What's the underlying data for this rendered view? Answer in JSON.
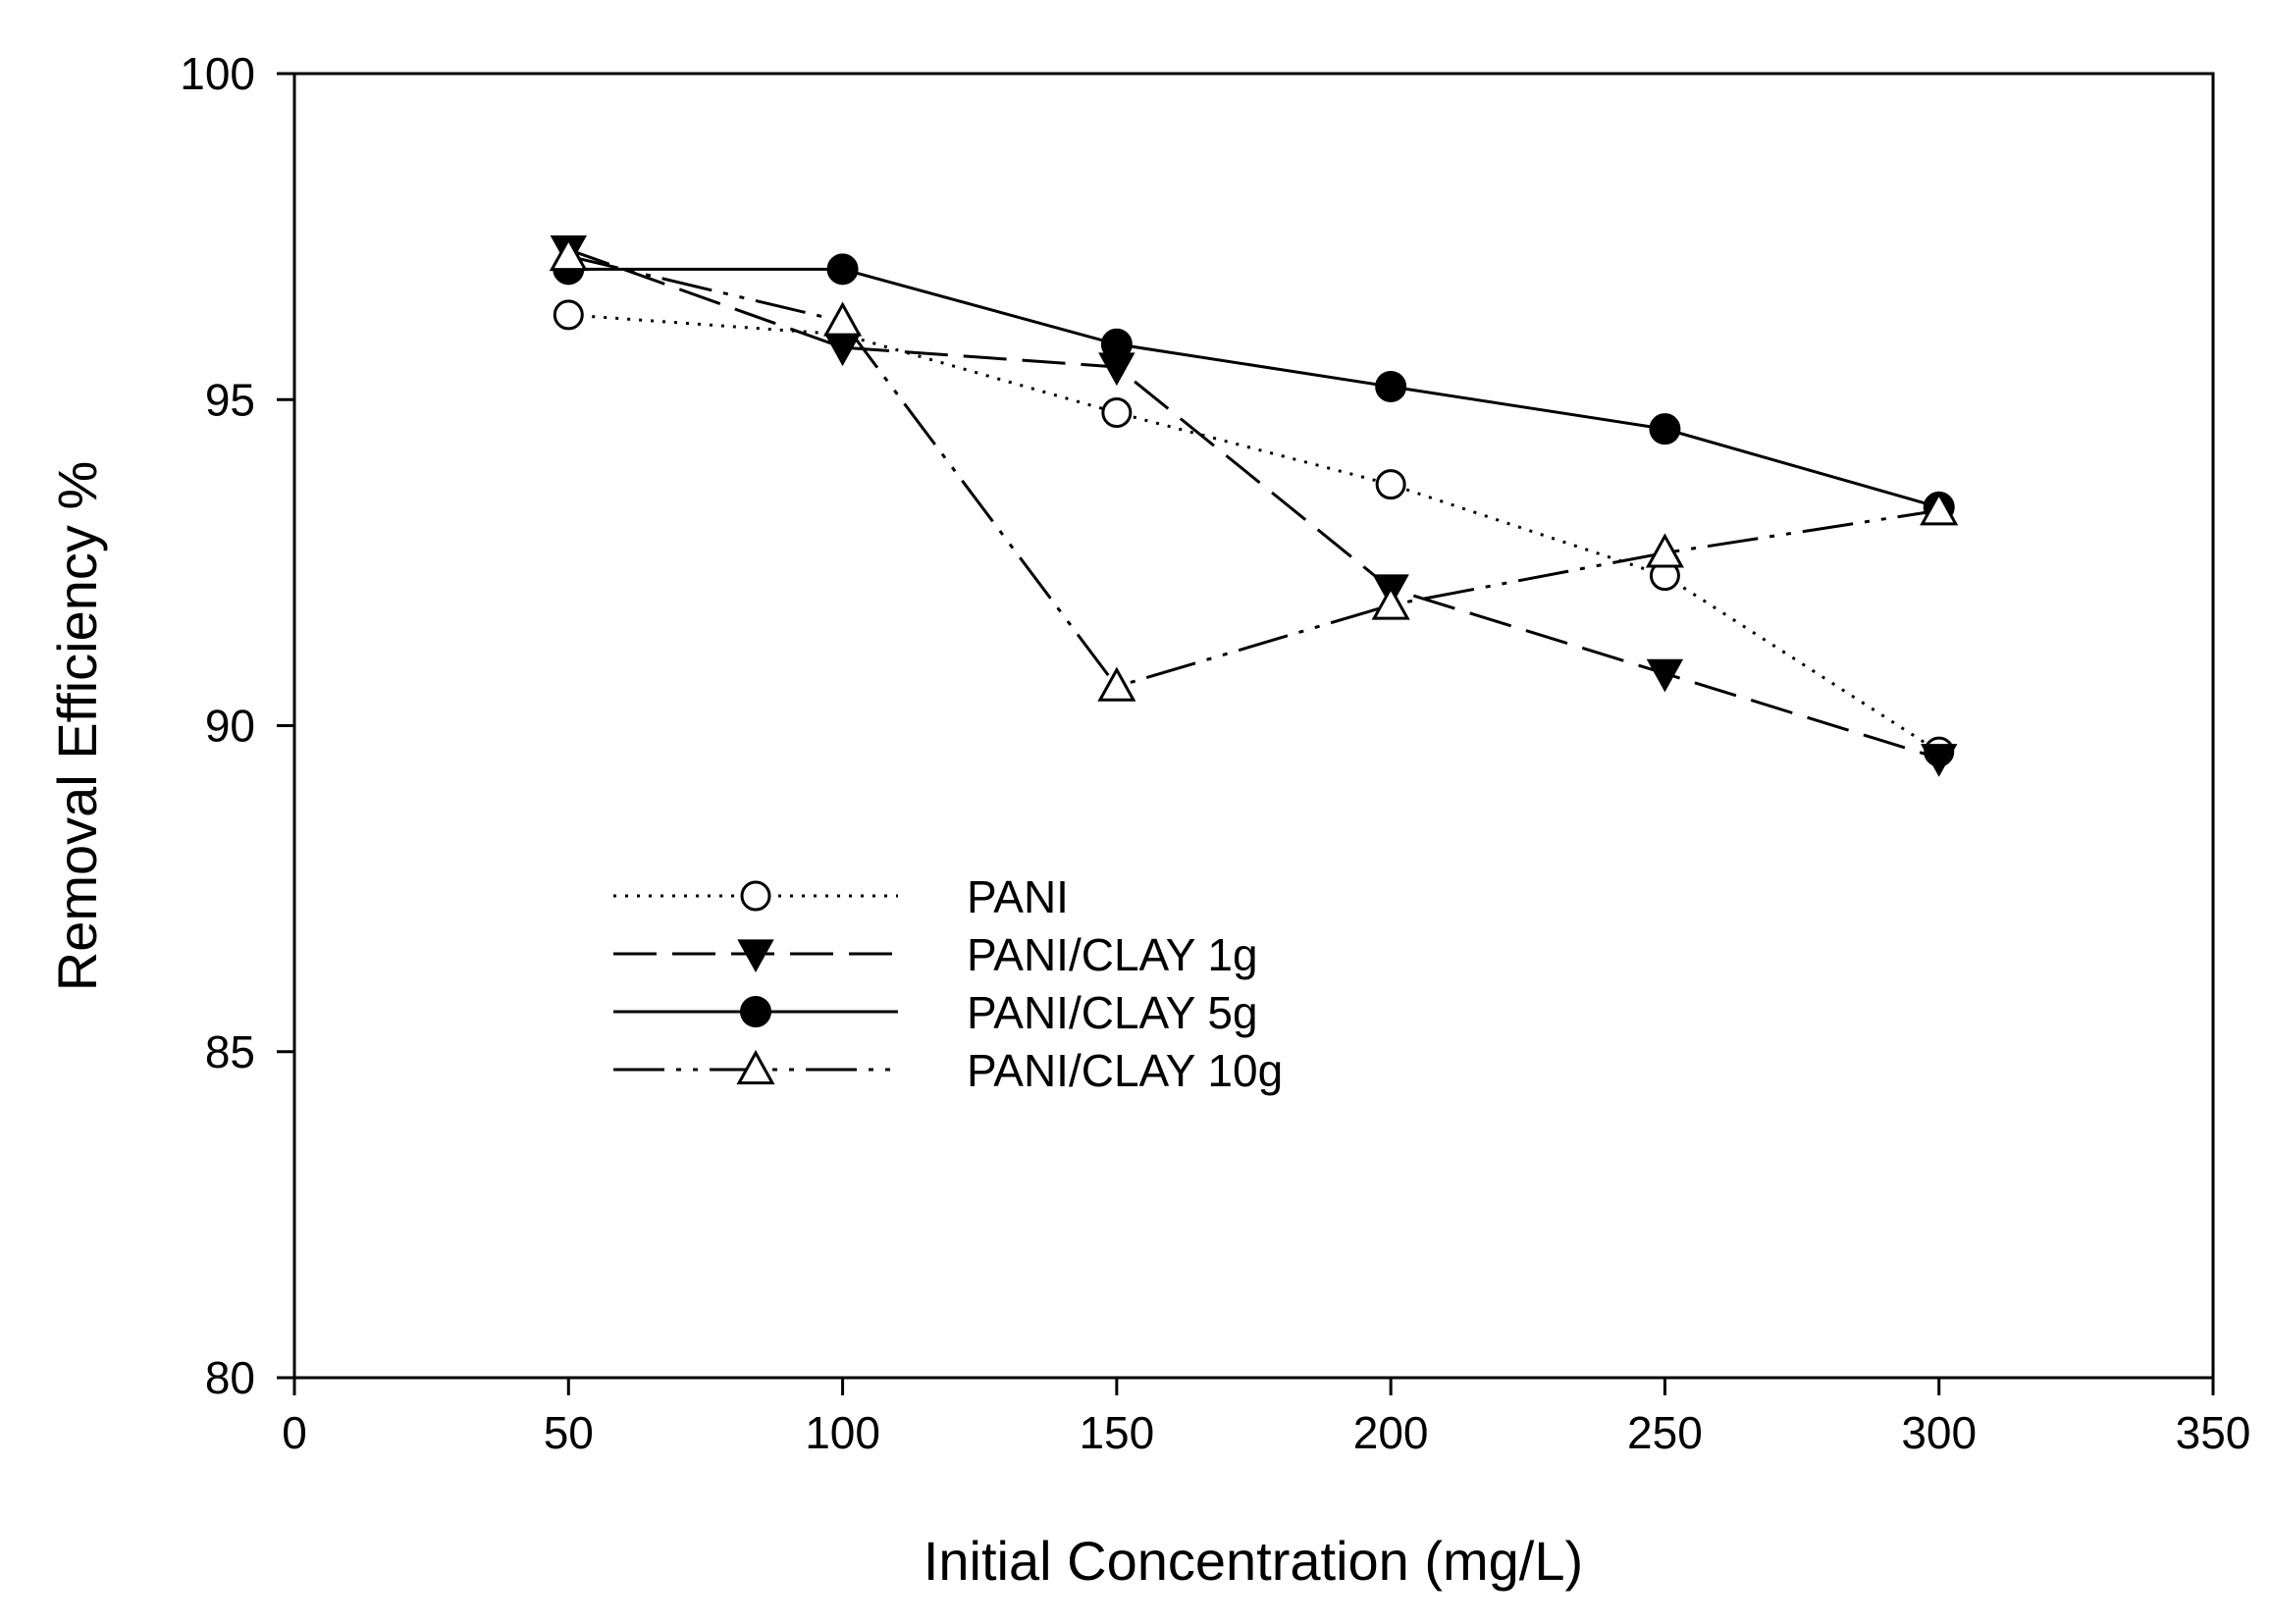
{
  "chart_data": {
    "type": "line",
    "title": "",
    "xlabel": "Initial Concentration (mg/L)",
    "ylabel": "Removal Efficiency %",
    "xlim": [
      0,
      350
    ],
    "ylim": [
      80,
      100
    ],
    "xticks": [
      0,
      50,
      100,
      150,
      200,
      250,
      300,
      350
    ],
    "yticks": [
      80,
      85,
      90,
      95,
      100
    ],
    "grid": false,
    "legend_position": "center-left",
    "series": [
      {
        "name": "PANI",
        "x": [
          50,
          100,
          150,
          200,
          250,
          300
        ],
        "values": [
          96.3,
          96.0,
          94.8,
          93.7,
          92.3,
          89.6
        ],
        "line_style": "dotted",
        "marker": "open-circle"
      },
      {
        "name": "PANI/CLAY 1g",
        "x": [
          50,
          100,
          150,
          200,
          250,
          300
        ],
        "values": [
          97.3,
          95.8,
          95.5,
          92.1,
          90.8,
          89.5
        ],
        "line_style": "dashed",
        "marker": "filled-triangle-down"
      },
      {
        "name": "PANI/CLAY 5g",
        "x": [
          50,
          100,
          150,
          200,
          250,
          300
        ],
        "values": [
          97.0,
          97.0,
          95.85,
          95.2,
          94.55,
          93.35
        ],
        "line_style": "solid",
        "marker": "filled-circle"
      },
      {
        "name": "PANI/CLAY 10g",
        "x": [
          50,
          100,
          150,
          200,
          250,
          300
        ],
        "values": [
          97.2,
          96.2,
          90.6,
          91.85,
          92.65,
          93.3
        ],
        "line_style": "dash-dot-dot",
        "marker": "open-triangle-up"
      }
    ]
  }
}
